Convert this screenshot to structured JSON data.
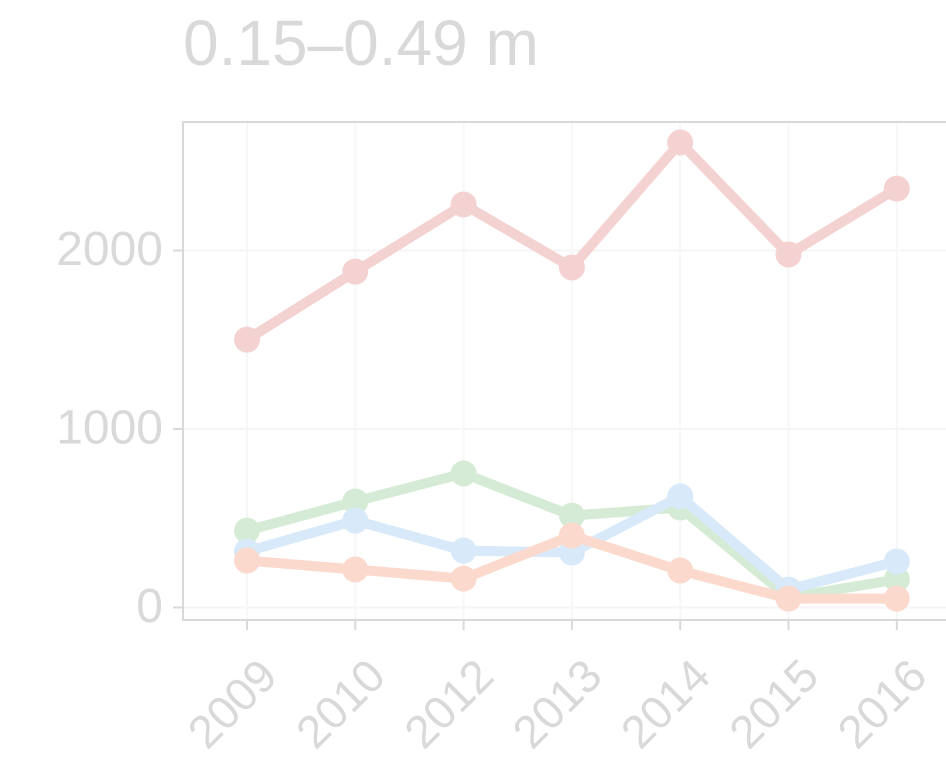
{
  "chart_data": {
    "type": "line",
    "title": "0.15–0.49 m",
    "categories": [
      "2009",
      "2010",
      "2012",
      "2013",
      "2014",
      "2015",
      "2016"
    ],
    "series": [
      {
        "color": "#f5d2d2",
        "values": [
          1501,
          1882,
          2258,
          1905,
          2605,
          1978,
          2347
        ]
      },
      {
        "color": "#d5ebd5",
        "values": [
          431,
          594,
          751,
          515,
          560,
          56,
          157
        ]
      },
      {
        "color": "#d8e9f9",
        "values": [
          314,
          487,
          319,
          308,
          622,
          101,
          258
        ]
      },
      {
        "color": "#fbdacd",
        "values": [
          263,
          213,
          162,
          403,
          207,
          50,
          50
        ]
      }
    ],
    "ylim": [
      -70,
      2720
    ],
    "yticks": [
      0,
      1000,
      2000
    ],
    "grid": true
  }
}
